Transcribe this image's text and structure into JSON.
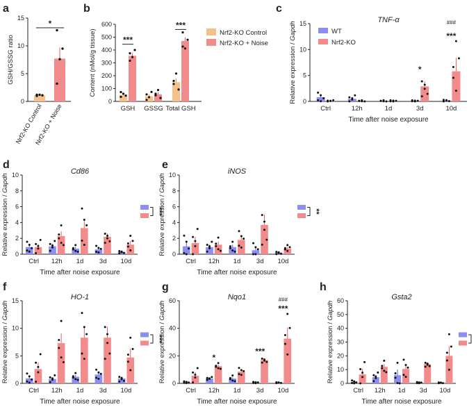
{
  "colors": {
    "wt": "#8e8ef0",
    "ko": "#f28c8c",
    "ko_err": "#e0605d",
    "control": "#f5c08a",
    "noise": "#f28c8c",
    "hash": "#f05a5a",
    "axis": "#222222"
  },
  "common": {
    "x_title": "Time after noise exposure",
    "y_title_rel": "Relative expression / Gapdh",
    "y_title_prefix": "Relative expression / ",
    "y_title_gene": "Gapdh",
    "time_labels": [
      "Ctrl",
      "12h",
      "1d",
      "3d",
      "10d"
    ]
  },
  "chart_data": [
    {
      "panel": "a",
      "type": "bar",
      "title": "",
      "ylabel": "GSH/GSSG ratio",
      "ylim": [
        0,
        15
      ],
      "yticks": [
        0,
        5,
        10,
        15
      ],
      "categories": [
        "Nrf2-KO Control",
        "Nrf2-KO + Noise"
      ],
      "values": [
        1.1,
        7.7
      ],
      "errors": [
        0.1,
        2.0
      ],
      "points": [
        [
          1.0,
          1.2,
          1.1,
          1.2
        ],
        [
          3.2,
          7.6,
          9.5,
          12.8
        ]
      ],
      "sig": [
        {
          "pair": [
            0,
            1
          ],
          "label": "*"
        }
      ]
    },
    {
      "panel": "b",
      "type": "bar",
      "ylabel": "Content (nMol/g tissue)",
      "ylim": [
        0,
        600
      ],
      "yticks": [
        0,
        100,
        200,
        300,
        400,
        500,
        600
      ],
      "categories": [
        "GSH",
        "GSSG",
        "Total GSH"
      ],
      "series": [
        {
          "name": "Nrf2-KO Control",
          "values": [
            50,
            40,
            150
          ],
          "errors": [
            10,
            15,
            30
          ]
        },
        {
          "name": "Nrf2-KO + Noise",
          "values": [
            355,
            55,
            470
          ],
          "errors": [
            20,
            15,
            30
          ]
        }
      ],
      "sig": [
        {
          "category": "GSH",
          "label": "***"
        },
        {
          "category": "Total GSH",
          "label": "***"
        }
      ]
    },
    {
      "panel": "c",
      "type": "bar",
      "gene": "TNF-α",
      "ylim": [
        0,
        15
      ],
      "yticks": [
        0,
        5,
        10,
        15
      ],
      "series": [
        {
          "name": "WT",
          "values": [
            0.8,
            0.5,
            0.1,
            0.1,
            0.2
          ],
          "errors": [
            0.4,
            0.3,
            0.05,
            0.05,
            0.1
          ]
        },
        {
          "name": "Nrf2-KO",
          "values": [
            0.1,
            0.1,
            0.1,
            2.9,
            5.8
          ],
          "errors": [
            0.05,
            0.05,
            0.05,
            1.0,
            2.6
          ]
        }
      ],
      "stars": [
        {
          "index": 3,
          "label": "*"
        },
        {
          "index": 4,
          "label": "***"
        }
      ],
      "hash": {
        "index": 4,
        "label": "###"
      }
    },
    {
      "panel": "d",
      "type": "bar",
      "gene": "Cd86",
      "ylim": [
        0,
        10
      ],
      "yticks": [
        0,
        2,
        4,
        6,
        8,
        10
      ],
      "series": [
        {
          "name": "WT",
          "values": [
            0.9,
            1.0,
            0.7,
            0.6,
            0.3
          ],
          "errors": [
            0.3,
            0.3,
            0.2,
            0.2,
            0.1
          ]
        },
        {
          "name": "Nrf2-KO",
          "values": [
            0.9,
            2.3,
            3.3,
            2.2,
            1.2
          ],
          "errors": [
            0.4,
            0.6,
            1.1,
            0.4,
            0.5
          ]
        }
      ],
      "legend_sig": "***"
    },
    {
      "panel": "e",
      "type": "bar",
      "gene": "iNOS",
      "ylim": [
        0,
        10
      ],
      "yticks": [
        0,
        2,
        4,
        6,
        8,
        10
      ],
      "series": [
        {
          "name": "WT",
          "values": [
            1.0,
            0.9,
            0.9,
            0.5,
            0.2
          ],
          "errors": [
            0.6,
            0.3,
            0.3,
            0.4,
            0.1
          ]
        },
        {
          "name": "Nrf2-KO",
          "values": [
            1.4,
            1.2,
            1.8,
            3.7,
            0.7
          ],
          "errors": [
            0.8,
            0.4,
            0.5,
            1.3,
            0.2
          ]
        }
      ],
      "legend_sig": "**"
    },
    {
      "panel": "f",
      "type": "bar",
      "gene": "HO-1",
      "ylim": [
        0,
        15
      ],
      "yticks": [
        0,
        5,
        10,
        15
      ],
      "series": [
        {
          "name": "WT",
          "values": [
            0.9,
            0.8,
            1.2,
            1.6,
            0.9
          ],
          "errors": [
            0.4,
            0.3,
            0.3,
            0.4,
            0.3
          ]
        },
        {
          "name": "Nrf2-KO",
          "values": [
            2.6,
            7.3,
            8.3,
            8.3,
            4.7
          ],
          "errors": [
            1.2,
            1.8,
            2.0,
            2.0,
            1.6
          ]
        }
      ],
      "legend_sig": "***"
    },
    {
      "panel": "g",
      "type": "bar",
      "gene": "Nqo1",
      "ylim": [
        0,
        60
      ],
      "yticks": [
        0,
        20,
        40,
        60
      ],
      "series": [
        {
          "name": "WT",
          "values": [
            0.8,
            3.5,
            3.5,
            0.6,
            0.6
          ],
          "errors": [
            0.3,
            0.5,
            1.0,
            0.2,
            0.2
          ]
        },
        {
          "name": "Nrf2-KO",
          "values": [
            5.5,
            12.5,
            8.5,
            17.0,
            32.5
          ],
          "errors": [
            2.5,
            1.0,
            1.2,
            1.0,
            8.0
          ]
        }
      ],
      "stars": [
        {
          "index": 1,
          "label": "*"
        },
        {
          "index": 3,
          "label": "***"
        },
        {
          "index": 4,
          "label": "***"
        }
      ],
      "hash": {
        "index": 4,
        "label": "###"
      }
    },
    {
      "panel": "h",
      "type": "bar",
      "gene": "Gsta2",
      "ylim": [
        0,
        60
      ],
      "yticks": [
        0,
        10,
        20,
        30,
        40,
        50,
        60
      ],
      "series": [
        {
          "name": "WT",
          "values": [
            1.0,
            4.5,
            6.0,
            0.5,
            0.5
          ],
          "errors": [
            0.5,
            1.5,
            4.0,
            0.2,
            0.2
          ]
        },
        {
          "name": "Nrf2-KO",
          "values": [
            6.5,
            12.0,
            10.5,
            14.0,
            20.0
          ],
          "errors": [
            4.0,
            2.0,
            3.0,
            1.0,
            7.0
          ]
        }
      ],
      "legend_sig": "***"
    }
  ]
}
